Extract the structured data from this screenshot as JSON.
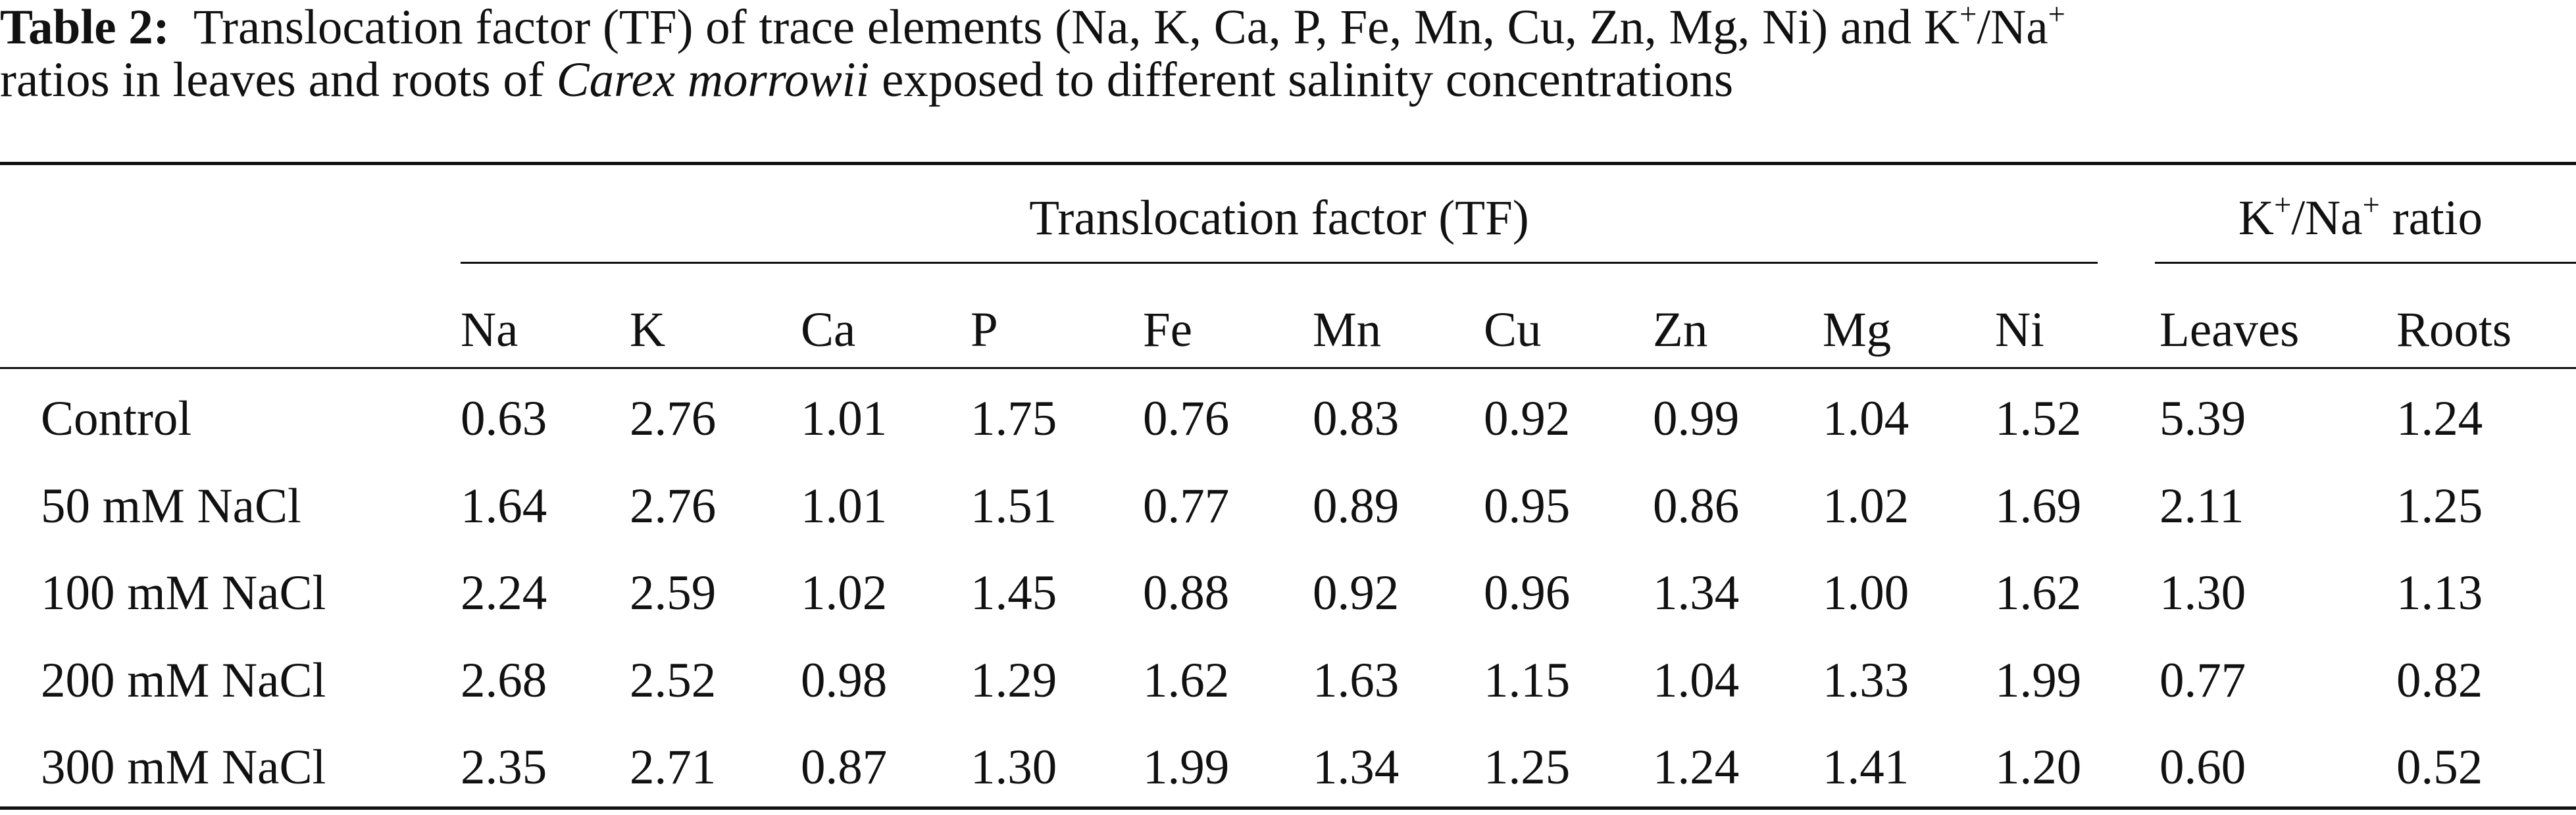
{
  "caption": {
    "label": "Table 2:",
    "line1": [
      "Translocation factor (TF) of trace elements (Na, K, Ca, P, Fe, Mn, Cu, Zn, Mg, Ni) and K",
      "+",
      "/Na",
      "+"
    ],
    "line2": [
      "ratios in leaves and roots of ",
      "Carex morrowii",
      " exposed to different salinity concentrations"
    ]
  },
  "table": {
    "group_headers": {
      "tf": "Translocation factor (TF)",
      "ratio": [
        "K",
        "+",
        "/Na",
        "+",
        " ratio"
      ]
    },
    "columns": [
      "Na",
      "K",
      "Ca",
      "P",
      "Fe",
      "Mn",
      "Cu",
      "Zn",
      "Mg",
      "Ni",
      "Leaves",
      "Roots"
    ],
    "rows": [
      {
        "label": "Control",
        "values": [
          "0.63",
          "2.76",
          "1.01",
          "1.75",
          "0.76",
          "0.83",
          "0.92",
          "0.99",
          "1.04",
          "1.52",
          "5.39",
          "1.24"
        ]
      },
      {
        "label": "50 mM NaCl",
        "values": [
          "1.64",
          "2.76",
          "1.01",
          "1.51",
          "0.77",
          "0.89",
          "0.95",
          "0.86",
          "1.02",
          "1.69",
          "2.11",
          "1.25"
        ]
      },
      {
        "label": "100 mM NaCl",
        "values": [
          "2.24",
          "2.59",
          "1.02",
          "1.45",
          "0.88",
          "0.92",
          "0.96",
          "1.34",
          "1.00",
          "1.62",
          "1.30",
          "1.13"
        ]
      },
      {
        "label": "200 mM NaCl",
        "values": [
          "2.68",
          "2.52",
          "0.98",
          "1.29",
          "1.62",
          "1.63",
          "1.15",
          "1.04",
          "1.33",
          "1.99",
          "0.77",
          "0.82"
        ]
      },
      {
        "label": "300 mM NaCl",
        "values": [
          "2.35",
          "2.71",
          "0.87",
          "1.30",
          "1.99",
          "1.34",
          "1.25",
          "1.24",
          "1.41",
          "1.20",
          "0.60",
          "0.52"
        ]
      }
    ]
  }
}
